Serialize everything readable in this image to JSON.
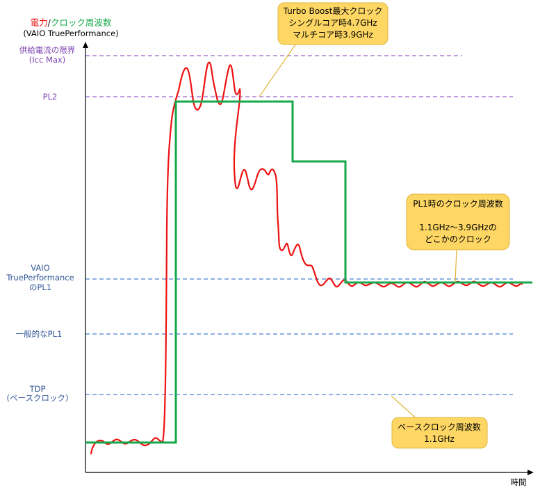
{
  "title": {
    "power": "電力",
    "slash": "/",
    "clock": "クロック周波数",
    "subtitle": "(VAIO TruePerformance)"
  },
  "colors": {
    "power": "#ee1111",
    "clock": "#14a84a",
    "purple_line": "#9966cc",
    "blue_line": "#4a7fd4",
    "callout_fill": "#fdd664",
    "callout_stroke": "#e0b43a"
  },
  "levels": {
    "icc_max": {
      "line1": "供給電流の限界",
      "line2": "(Icc Max)"
    },
    "pl2": {
      "line1": "PL2"
    },
    "vaio_pl1": {
      "line1": "VAIO",
      "line2": "TruePerformance",
      "line3": "のPL1"
    },
    "general_pl1": {
      "line1": "一般的なPL1"
    },
    "tdp": {
      "line1": "TDP",
      "line2": "(ベースクロック)"
    }
  },
  "x_axis": {
    "label": "時間"
  },
  "callouts": {
    "turbo": {
      "line1": "Turbo Boost最大クロック",
      "line2": "シングルコア時4.7GHz",
      "line3": "マルチコア時3.9GHz"
    },
    "pl1_clock": {
      "line1": "PL1時のクロック周波数",
      "line2": "1.1GHz～3.9GHzの",
      "line3": "どこかのクロック"
    },
    "base": {
      "line1": "ベースクロック周波数",
      "line2": "1.1GHz"
    }
  }
}
